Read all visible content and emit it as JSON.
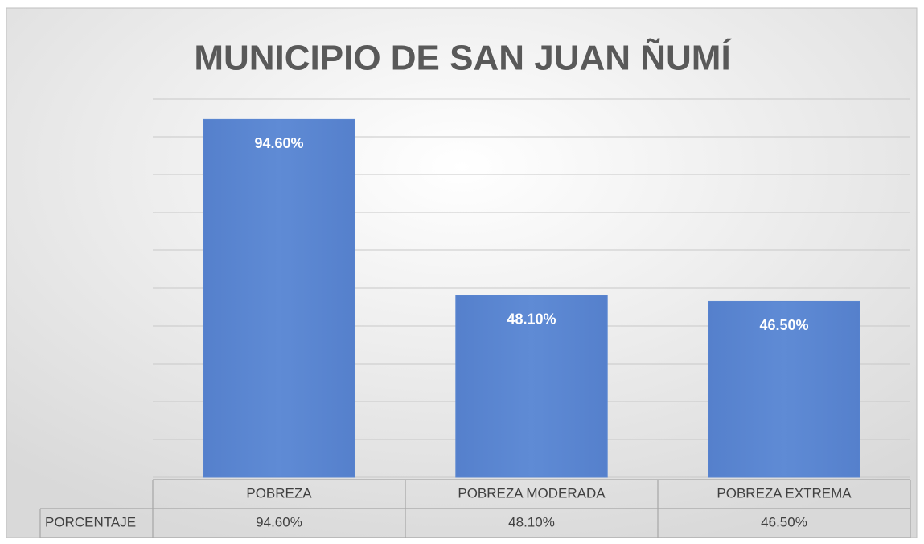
{
  "chart_data": {
    "type": "bar",
    "title": "MUNICIPIO DE SAN JUAN ÑUMÍ",
    "categories": [
      "POBREZA",
      "POBREZA MODERADA",
      "POBREZA EXTREMA"
    ],
    "series_name": "PORCENTAJE",
    "values": [
      94.6,
      48.1,
      46.5
    ],
    "value_labels": [
      "94.60%",
      "48.10%",
      "46.50%"
    ],
    "color": "#5b87d1",
    "ylim": [
      0,
      100
    ],
    "yticks": [
      0,
      10,
      20,
      30,
      40,
      50,
      60,
      70,
      80,
      90,
      100
    ],
    "grid": true
  }
}
